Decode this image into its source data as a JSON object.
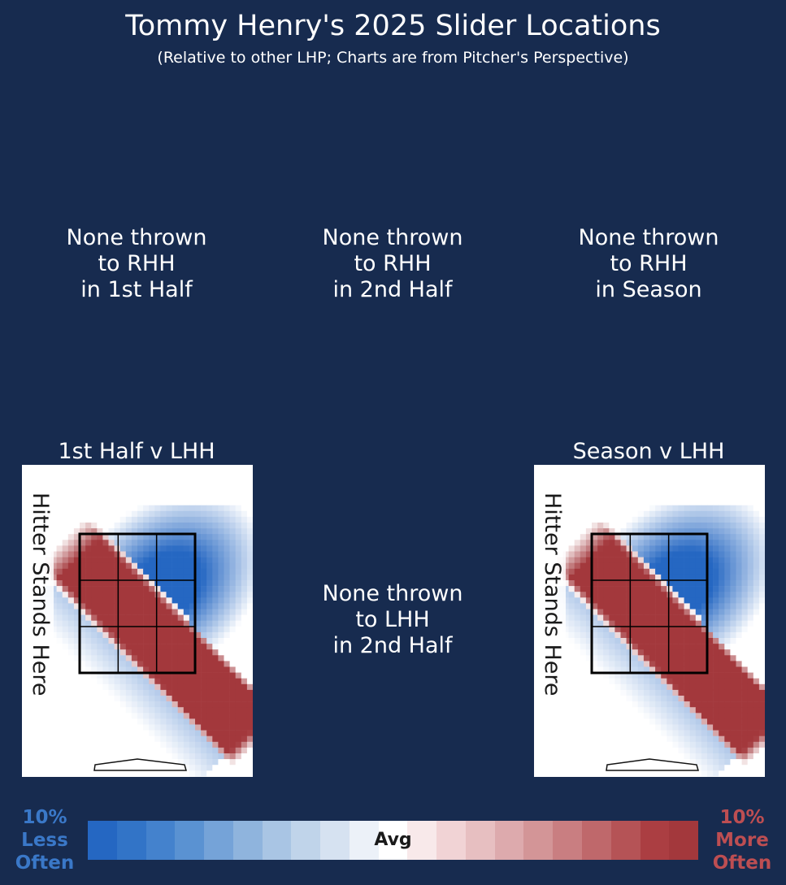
{
  "header": {
    "title": "Tommy Henry's 2025 Slider Locations",
    "subtitle": "(Relative to other LHP; Charts are from Pitcher's Perspective)"
  },
  "messages": {
    "rhh_1st": "None thrown\nto RHH\nin 1st Half",
    "rhh_2nd": "None thrown\nto RHH\nin 2nd Half",
    "rhh_season": "None thrown\nto RHH\nin Season",
    "lhh_2nd": "None thrown\nto LHH\nin 2nd Half"
  },
  "panels": {
    "lhh_1st": {
      "title": "1st Half v LHH",
      "hitter_label": "Hitter Stands Here"
    },
    "lhh_season": {
      "title": "Season v LHH",
      "hitter_label": "Hitter Stands Here"
    }
  },
  "legend": {
    "left_label": "10%\nLess\nOften",
    "right_label": "10%\nMore\nOften",
    "center_label": "Avg",
    "colors": [
      "#2567c2",
      "#3274c7",
      "#4482cd",
      "#5a92d2",
      "#75a3d8",
      "#8fb4dd",
      "#a9c5e4",
      "#c0d4ea",
      "#d6e2f1",
      "#ecf1f8",
      "#ffffff",
      "#f8e9ea",
      "#f1d3d5",
      "#e7bfc1",
      "#ddaaad",
      "#d39597",
      "#c97e81",
      "#bf686b",
      "#b55356",
      "#ab3e42",
      "#a3383c"
    ]
  },
  "chart_data": [
    {
      "type": "heatmap",
      "title": "1st Half v LHH",
      "description_scale": "relative frequency vs other LHP, -10% to +10%",
      "zones": {
        "grid": [
          3,
          3
        ]
      }
    },
    {
      "type": "heatmap",
      "title": "Season v LHH",
      "description_scale": "relative frequency vs other LHP, -10% to +10%",
      "zones": {
        "grid": [
          3,
          3
        ]
      }
    }
  ]
}
